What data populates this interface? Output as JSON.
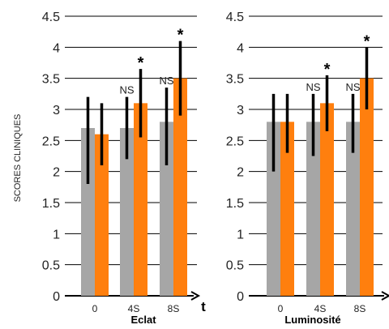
{
  "ylabel": "SCORES CLINIQUES",
  "xaxis_symbol": "t",
  "colors": {
    "gray": "#a6a6a6",
    "orange": "#ff7f0e",
    "error": "#000000",
    "axis": "#000000"
  },
  "chart_data": [
    {
      "type": "bar",
      "xlabel": "Eclat",
      "categories": [
        "0",
        "4S",
        "8S"
      ],
      "yticks": [
        "0",
        "0.5",
        "1",
        "1.5",
        "2",
        "2.5",
        "3",
        "3.5",
        "4",
        "4.5"
      ],
      "ylim": [
        0,
        4.5
      ],
      "grid": true,
      "series": [
        {
          "color": "gray",
          "values": [
            2.7,
            2.7,
            2.8
          ],
          "err_low": [
            1.8,
            2.2,
            2.1
          ],
          "err_high": [
            3.2,
            3.2,
            3.35
          ]
        },
        {
          "color": "orange",
          "values": [
            2.6,
            3.1,
            3.5
          ],
          "err_low": [
            2.1,
            2.55,
            2.9
          ],
          "err_high": [
            3.1,
            3.65,
            4.1
          ]
        }
      ],
      "annotations": [
        {
          "category": 1,
          "series": 0,
          "text": "NS"
        },
        {
          "category": 1,
          "series": 1,
          "text": "*"
        },
        {
          "category": 2,
          "series": 0,
          "text": "NS"
        },
        {
          "category": 2,
          "series": 1,
          "text": "*"
        }
      ]
    },
    {
      "type": "bar",
      "xlabel": "Luminosité",
      "categories": [
        "0",
        "4S",
        "8S"
      ],
      "yticks": [
        "0",
        "0.5",
        "1",
        "1.5",
        "2",
        "2.5",
        "3",
        "3.5",
        "4",
        "4.5"
      ],
      "ylim": [
        0,
        4.5
      ],
      "grid": true,
      "series": [
        {
          "color": "gray",
          "values": [
            2.8,
            2.8,
            2.8
          ],
          "err_low": [
            2.0,
            2.25,
            2.3
          ],
          "err_high": [
            3.25,
            3.25,
            3.25
          ]
        },
        {
          "color": "orange",
          "values": [
            2.8,
            3.1,
            3.5
          ],
          "err_low": [
            2.3,
            2.65,
            3.0
          ],
          "err_high": [
            3.25,
            3.55,
            4.0
          ]
        }
      ],
      "annotations": [
        {
          "category": 1,
          "series": 0,
          "text": "NS"
        },
        {
          "category": 1,
          "series": 1,
          "text": "*"
        },
        {
          "category": 2,
          "series": 0,
          "text": "NS"
        },
        {
          "category": 2,
          "series": 1,
          "text": "*"
        }
      ]
    }
  ]
}
